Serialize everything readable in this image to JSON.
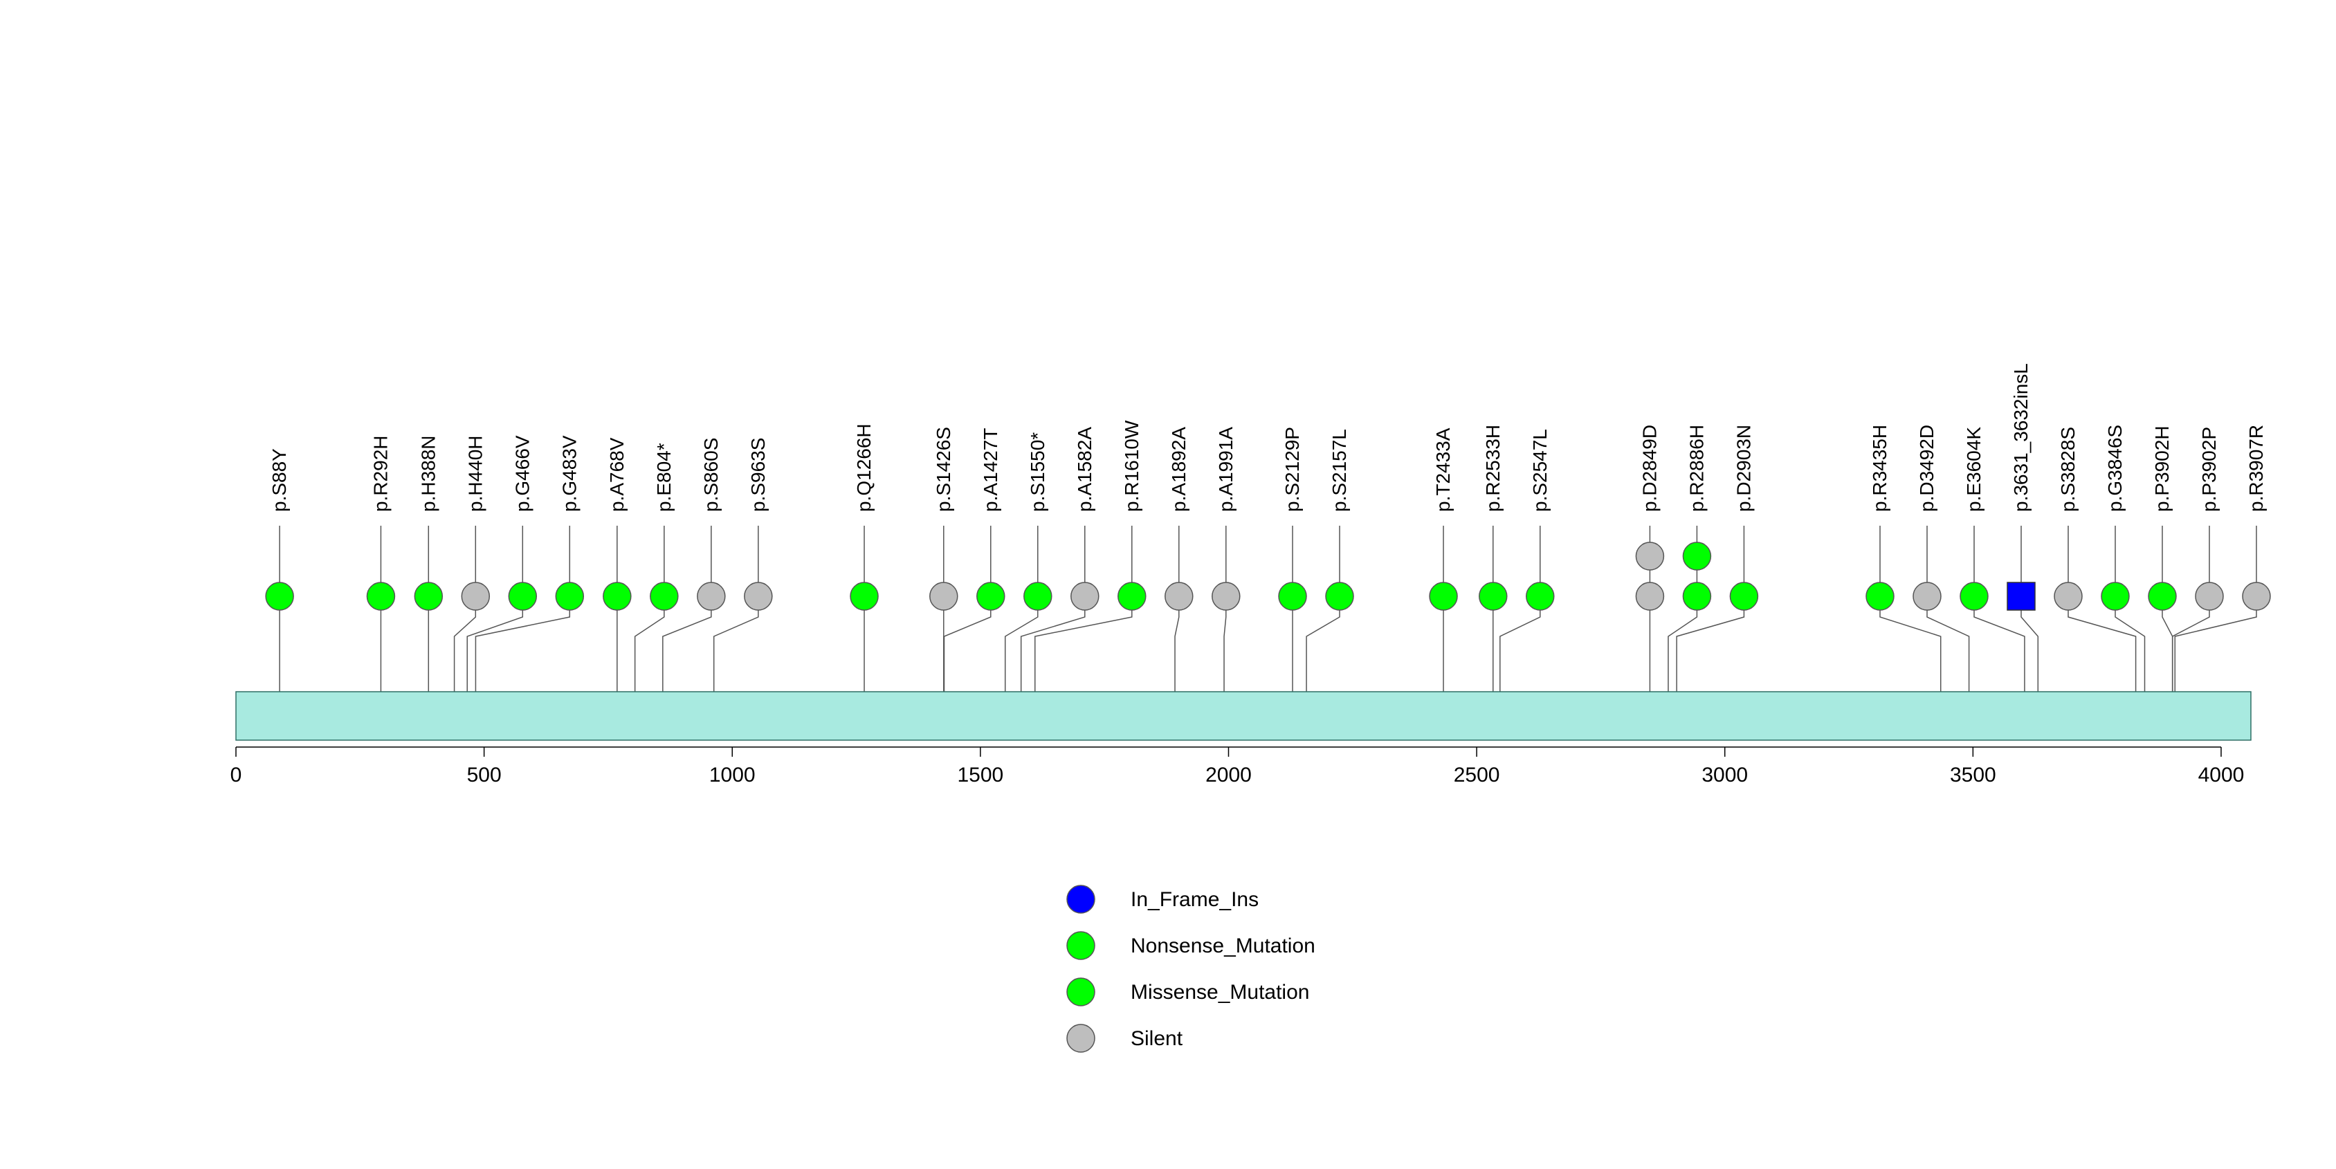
{
  "chart_data": {
    "type": "lollipop",
    "x_axis": {
      "min": 0,
      "max": 4060,
      "ticks": [
        0,
        500,
        1000,
        1500,
        2000,
        2500,
        3000,
        3500,
        4000
      ]
    },
    "protein_length": 4060,
    "colors": {
      "In_Frame_Ins": "#0000FF",
      "Nonsense_Mutation": "#00FF00",
      "Missense_Mutation": "#00FF00",
      "Silent": "#BEBEBE",
      "domain_fill": "#A8EAE0",
      "domain_stroke": "#2F6F66"
    },
    "legend": [
      {
        "label": "In_Frame_Ins",
        "type": "In_Frame_Ins"
      },
      {
        "label": "Nonsense_Mutation",
        "type": "Nonsense_Mutation"
      },
      {
        "label": "Missense_Mutation",
        "type": "Missense_Mutation"
      },
      {
        "label": "Silent",
        "type": "Silent"
      }
    ],
    "mutations": [
      {
        "label": "p.S88Y",
        "pos": 88,
        "markers": [
          "Missense_Mutation"
        ]
      },
      {
        "label": "p.R292H",
        "pos": 292,
        "markers": [
          "Missense_Mutation"
        ]
      },
      {
        "label": "p.H388N",
        "pos": 388,
        "markers": [
          "Missense_Mutation"
        ]
      },
      {
        "label": "p.H440H",
        "pos": 440,
        "markers": [
          "Silent"
        ]
      },
      {
        "label": "p.G466V",
        "pos": 466,
        "markers": [
          "Missense_Mutation"
        ]
      },
      {
        "label": "p.G483V",
        "pos": 483,
        "markers": [
          "Missense_Mutation"
        ]
      },
      {
        "label": "p.A768V",
        "pos": 768,
        "markers": [
          "Missense_Mutation"
        ]
      },
      {
        "label": "p.E804*",
        "pos": 804,
        "markers": [
          "Nonsense_Mutation"
        ]
      },
      {
        "label": "p.S860S",
        "pos": 860,
        "markers": [
          "Silent"
        ]
      },
      {
        "label": "p.S963S",
        "pos": 963,
        "markers": [
          "Silent"
        ]
      },
      {
        "label": "p.Q1266H",
        "pos": 1266,
        "markers": [
          "Missense_Mutation"
        ]
      },
      {
        "label": "p.S1426S",
        "pos": 1426,
        "markers": [
          "Silent"
        ]
      },
      {
        "label": "p.A1427T",
        "pos": 1427,
        "markers": [
          "Missense_Mutation"
        ]
      },
      {
        "label": "p.S1550*",
        "pos": 1550,
        "markers": [
          "Nonsense_Mutation"
        ]
      },
      {
        "label": "p.A1582A",
        "pos": 1582,
        "markers": [
          "Silent"
        ]
      },
      {
        "label": "p.R1610W",
        "pos": 1610,
        "markers": [
          "Missense_Mutation"
        ]
      },
      {
        "label": "p.A1892A",
        "pos": 1892,
        "markers": [
          "Silent"
        ]
      },
      {
        "label": "p.A1991A",
        "pos": 1991,
        "markers": [
          "Silent"
        ]
      },
      {
        "label": "p.S2129P",
        "pos": 2129,
        "markers": [
          "Missense_Mutation"
        ]
      },
      {
        "label": "p.S2157L",
        "pos": 2157,
        "markers": [
          "Missense_Mutation"
        ]
      },
      {
        "label": "p.T2433A",
        "pos": 2433,
        "markers": [
          "Missense_Mutation"
        ]
      },
      {
        "label": "p.R2533H",
        "pos": 2533,
        "markers": [
          "Missense_Mutation"
        ]
      },
      {
        "label": "p.S2547L",
        "pos": 2547,
        "markers": [
          "Missense_Mutation"
        ]
      },
      {
        "label": "p.D2849D",
        "pos": 2849,
        "markers": [
          "Silent",
          "Silent"
        ]
      },
      {
        "label": "p.R2886H",
        "pos": 2886,
        "markers": [
          "Missense_Mutation",
          "Missense_Mutation"
        ]
      },
      {
        "label": "p.D2903N",
        "pos": 2903,
        "markers": [
          "Missense_Mutation"
        ]
      },
      {
        "label": "p.R3435H",
        "pos": 3435,
        "markers": [
          "Missense_Mutation"
        ]
      },
      {
        "label": "p.D3492D",
        "pos": 3492,
        "markers": [
          "Silent"
        ]
      },
      {
        "label": "p.E3604K",
        "pos": 3604,
        "markers": [
          "Missense_Mutation"
        ]
      },
      {
        "label": "p.3631_3632insL",
        "pos": 3631,
        "markers": [
          "In_Frame_Ins"
        ]
      },
      {
        "label": "p.S3828S",
        "pos": 3828,
        "markers": [
          "Silent"
        ]
      },
      {
        "label": "p.G3846S",
        "pos": 3846,
        "markers": [
          "Missense_Mutation"
        ]
      },
      {
        "label": "p.P3902H",
        "pos": 3902,
        "markers": [
          "Missense_Mutation"
        ]
      },
      {
        "label": "p.P3902P",
        "pos": 3902,
        "markers": [
          "Silent"
        ]
      },
      {
        "label": "p.R3907R",
        "pos": 3907,
        "markers": [
          "Silent"
        ]
      }
    ]
  }
}
